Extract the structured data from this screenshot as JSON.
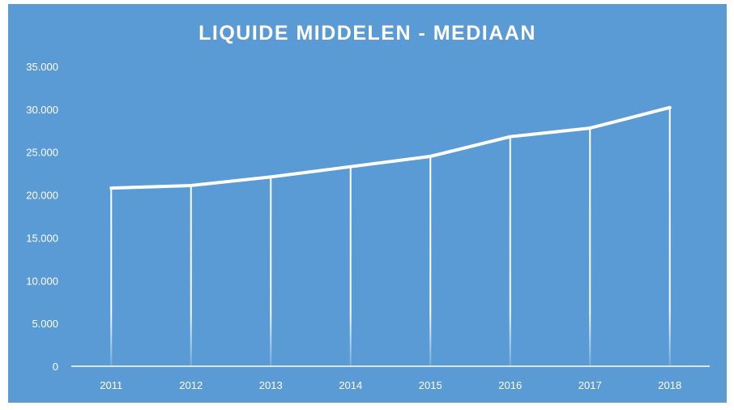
{
  "chart_data": {
    "type": "line",
    "title": "LIQUIDE MIDDELEN - MEDIAAN",
    "categories": [
      "2011",
      "2012",
      "2013",
      "2014",
      "2015",
      "2016",
      "2017",
      "2018"
    ],
    "series": [
      {
        "values": [
          20800,
          21100,
          22100,
          23300,
          24500,
          26800,
          27800,
          30200
        ]
      }
    ],
    "ylim": [
      0,
      35000
    ],
    "yticks": [
      "0",
      "5.000",
      "10.000",
      "15.000",
      "20.000",
      "25.000",
      "30.000",
      "35.000"
    ],
    "grid": false,
    "drop_lines": true,
    "colors": {
      "background": "#5b9bd5",
      "line": "#ffffff",
      "text": "#ffffff"
    }
  }
}
